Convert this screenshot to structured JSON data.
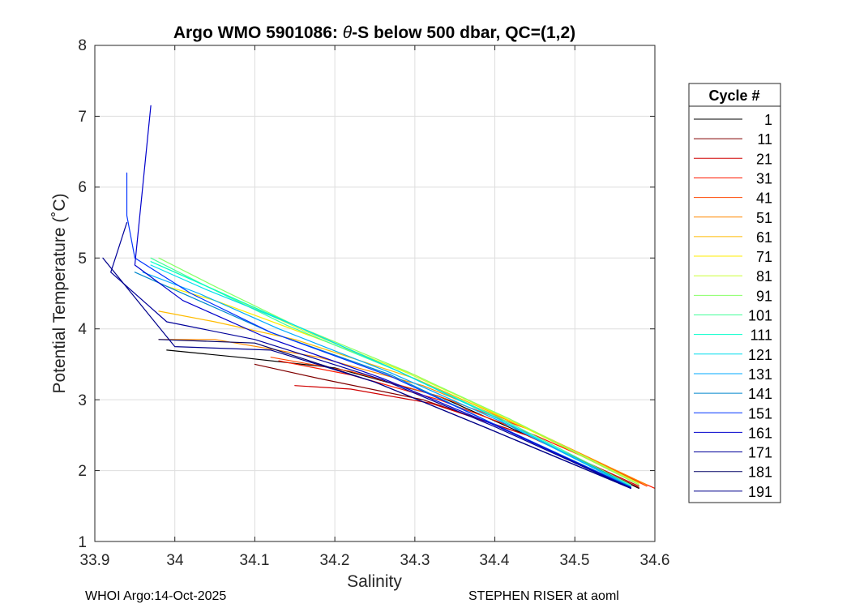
{
  "chart_data": {
    "type": "line",
    "title_prefix": "Argo WMO 5901086: ",
    "title_theta": "θ",
    "title_suffix": "-S below 500 dbar,  QC=(1,2)",
    "xlabel": "Salinity",
    "ylabel": "Potential Temperature (˚C)",
    "xlim": [
      33.9,
      34.6
    ],
    "ylim": [
      1,
      8
    ],
    "x_ticks": [
      "33.9",
      "34",
      "34.1",
      "34.2",
      "34.3",
      "34.4",
      "34.5",
      "34.6"
    ],
    "y_ticks": [
      "1",
      "2",
      "3",
      "4",
      "5",
      "6",
      "7",
      "8"
    ],
    "grid": true,
    "legend_position": "outside-right",
    "legend_title": "Cycle #",
    "legend_entries": [
      {
        "label": "1",
        "color": "#000000"
      },
      {
        "label": "11",
        "color": "#800000"
      },
      {
        "label": "21",
        "color": "#d00000"
      },
      {
        "label": "31",
        "color": "#ff1a00"
      },
      {
        "label": "41",
        "color": "#ff4400"
      },
      {
        "label": "51",
        "color": "#ff8800"
      },
      {
        "label": "61",
        "color": "#ffbb00"
      },
      {
        "label": "71",
        "color": "#ffee00"
      },
      {
        "label": "81",
        "color": "#ccff33"
      },
      {
        "label": "91",
        "color": "#88ff66"
      },
      {
        "label": "101",
        "color": "#44ff99"
      },
      {
        "label": "111",
        "color": "#00ffcc"
      },
      {
        "label": "121",
        "color": "#00ddee"
      },
      {
        "label": "131",
        "color": "#00aaff"
      },
      {
        "label": "141",
        "color": "#0088cc"
      },
      {
        "label": "151",
        "color": "#0033ff"
      },
      {
        "label": "161",
        "color": "#0000cc"
      },
      {
        "label": "171",
        "color": "#000099"
      },
      {
        "label": "181",
        "color": "#000066"
      },
      {
        "label": "191",
        "color": "#00008b"
      }
    ],
    "series": [
      {
        "name": "cycle-1",
        "color": "#000000",
        "points": [
          [
            34.58,
            1.75
          ],
          [
            34.45,
            2.45
          ],
          [
            34.33,
            3.05
          ],
          [
            34.2,
            3.45
          ],
          [
            34.08,
            3.6
          ],
          [
            33.99,
            3.7
          ]
        ]
      },
      {
        "name": "cycle-11",
        "color": "#800000",
        "points": [
          [
            34.58,
            1.76
          ],
          [
            34.44,
            2.5
          ],
          [
            34.31,
            3.0
          ],
          [
            34.18,
            3.3
          ],
          [
            34.1,
            3.5
          ]
        ]
      },
      {
        "name": "cycle-21",
        "color": "#d00000",
        "points": [
          [
            34.58,
            1.78
          ],
          [
            34.44,
            2.5
          ],
          [
            34.32,
            2.95
          ],
          [
            34.22,
            3.15
          ],
          [
            34.15,
            3.2
          ]
        ]
      },
      {
        "name": "cycle-31",
        "color": "#ff1a00",
        "points": [
          [
            34.6,
            1.75
          ],
          [
            34.45,
            2.5
          ],
          [
            34.33,
            3.0
          ],
          [
            34.22,
            3.35
          ],
          [
            34.13,
            3.55
          ]
        ]
      },
      {
        "name": "cycle-41",
        "color": "#ff4400",
        "points": [
          [
            34.59,
            1.78
          ],
          [
            34.45,
            2.55
          ],
          [
            34.33,
            3.05
          ],
          [
            34.22,
            3.4
          ],
          [
            34.12,
            3.6
          ]
        ]
      },
      {
        "name": "cycle-51",
        "color": "#ff8800",
        "points": [
          [
            34.59,
            1.8
          ],
          [
            34.44,
            2.6
          ],
          [
            34.31,
            3.2
          ],
          [
            34.18,
            3.6
          ],
          [
            34.05,
            3.85
          ],
          [
            33.98,
            3.85
          ]
        ]
      },
      {
        "name": "cycle-61",
        "color": "#ffbb00",
        "points": [
          [
            34.58,
            1.8
          ],
          [
            34.43,
            2.65
          ],
          [
            34.3,
            3.3
          ],
          [
            34.15,
            3.85
          ],
          [
            34.05,
            4.1
          ],
          [
            33.98,
            4.25
          ]
        ]
      },
      {
        "name": "cycle-71",
        "color": "#ffee00",
        "points": [
          [
            34.58,
            1.82
          ],
          [
            34.42,
            2.7
          ],
          [
            34.3,
            3.35
          ],
          [
            34.17,
            3.9
          ],
          [
            34.05,
            4.4
          ],
          [
            33.99,
            4.6
          ]
        ]
      },
      {
        "name": "cycle-81",
        "color": "#ccff33",
        "points": [
          [
            34.58,
            1.82
          ],
          [
            34.42,
            2.72
          ],
          [
            34.29,
            3.38
          ],
          [
            34.16,
            3.98
          ],
          [
            34.05,
            4.55
          ],
          [
            33.98,
            4.9
          ]
        ]
      },
      {
        "name": "cycle-91",
        "color": "#88ff66",
        "points": [
          [
            34.58,
            1.8
          ],
          [
            34.42,
            2.72
          ],
          [
            34.29,
            3.4
          ],
          [
            34.15,
            4.05
          ],
          [
            34.05,
            4.6
          ],
          [
            33.98,
            5.0
          ]
        ]
      },
      {
        "name": "cycle-101",
        "color": "#44ff99",
        "points": [
          [
            34.57,
            1.8
          ],
          [
            34.41,
            2.72
          ],
          [
            34.28,
            3.4
          ],
          [
            34.14,
            4.05
          ],
          [
            34.04,
            4.6
          ],
          [
            33.97,
            5.0
          ]
        ]
      },
      {
        "name": "cycle-111",
        "color": "#00ffcc",
        "points": [
          [
            34.57,
            1.78
          ],
          [
            34.41,
            2.7
          ],
          [
            34.28,
            3.4
          ],
          [
            34.14,
            4.1
          ],
          [
            34.04,
            4.6
          ],
          [
            33.97,
            4.95
          ]
        ]
      },
      {
        "name": "cycle-121",
        "color": "#00ddee",
        "points": [
          [
            34.57,
            1.78
          ],
          [
            34.41,
            2.7
          ],
          [
            34.28,
            3.4
          ],
          [
            34.15,
            4.05
          ],
          [
            34.04,
            4.55
          ],
          [
            33.97,
            4.9
          ]
        ]
      },
      {
        "name": "cycle-131",
        "color": "#00aaff",
        "points": [
          [
            34.57,
            1.77
          ],
          [
            34.41,
            2.68
          ],
          [
            34.27,
            3.38
          ],
          [
            34.13,
            4.0
          ],
          [
            34.03,
            4.5
          ],
          [
            33.96,
            4.8
          ]
        ]
      },
      {
        "name": "cycle-141",
        "color": "#0088cc",
        "points": [
          [
            34.57,
            1.77
          ],
          [
            34.4,
            2.65
          ],
          [
            34.27,
            3.35
          ],
          [
            34.12,
            3.95
          ],
          [
            34.02,
            4.45
          ],
          [
            33.95,
            4.8
          ]
        ]
      },
      {
        "name": "cycle-151",
        "color": "#0033ff",
        "points": [
          [
            34.57,
            1.76
          ],
          [
            34.4,
            2.65
          ],
          [
            34.27,
            3.33
          ],
          [
            34.12,
            3.95
          ],
          [
            34.02,
            4.5
          ],
          [
            33.95,
            5.0
          ],
          [
            33.94,
            5.6
          ],
          [
            33.94,
            6.2
          ]
        ]
      },
      {
        "name": "cycle-161",
        "color": "#0000cc",
        "points": [
          [
            34.57,
            1.76
          ],
          [
            34.4,
            2.64
          ],
          [
            34.26,
            3.3
          ],
          [
            34.11,
            3.9
          ],
          [
            34.01,
            4.4
          ],
          [
            33.95,
            4.9
          ],
          [
            33.97,
            7.15
          ]
        ]
      },
      {
        "name": "cycle-171",
        "color": "#000099",
        "points": [
          [
            34.57,
            1.75
          ],
          [
            34.4,
            2.62
          ],
          [
            34.26,
            3.28
          ],
          [
            34.1,
            3.85
          ],
          [
            33.99,
            4.1
          ],
          [
            33.92,
            4.8
          ],
          [
            33.94,
            5.5
          ]
        ]
      },
      {
        "name": "cycle-181",
        "color": "#000066",
        "points": [
          [
            34.57,
            1.75
          ],
          [
            34.39,
            2.6
          ],
          [
            34.25,
            3.25
          ],
          [
            34.1,
            3.8
          ],
          [
            33.98,
            3.85
          ]
        ]
      },
      {
        "name": "cycle-191",
        "color": "#00008b",
        "points": [
          [
            34.57,
            1.75
          ],
          [
            34.39,
            2.6
          ],
          [
            34.25,
            3.25
          ],
          [
            34.12,
            3.7
          ],
          [
            34.0,
            3.75
          ],
          [
            33.91,
            5.0
          ]
        ]
      }
    ]
  },
  "footer": {
    "left": "WHOI Argo:14-Oct-2025",
    "right": "STEPHEN RISER at aoml"
  }
}
